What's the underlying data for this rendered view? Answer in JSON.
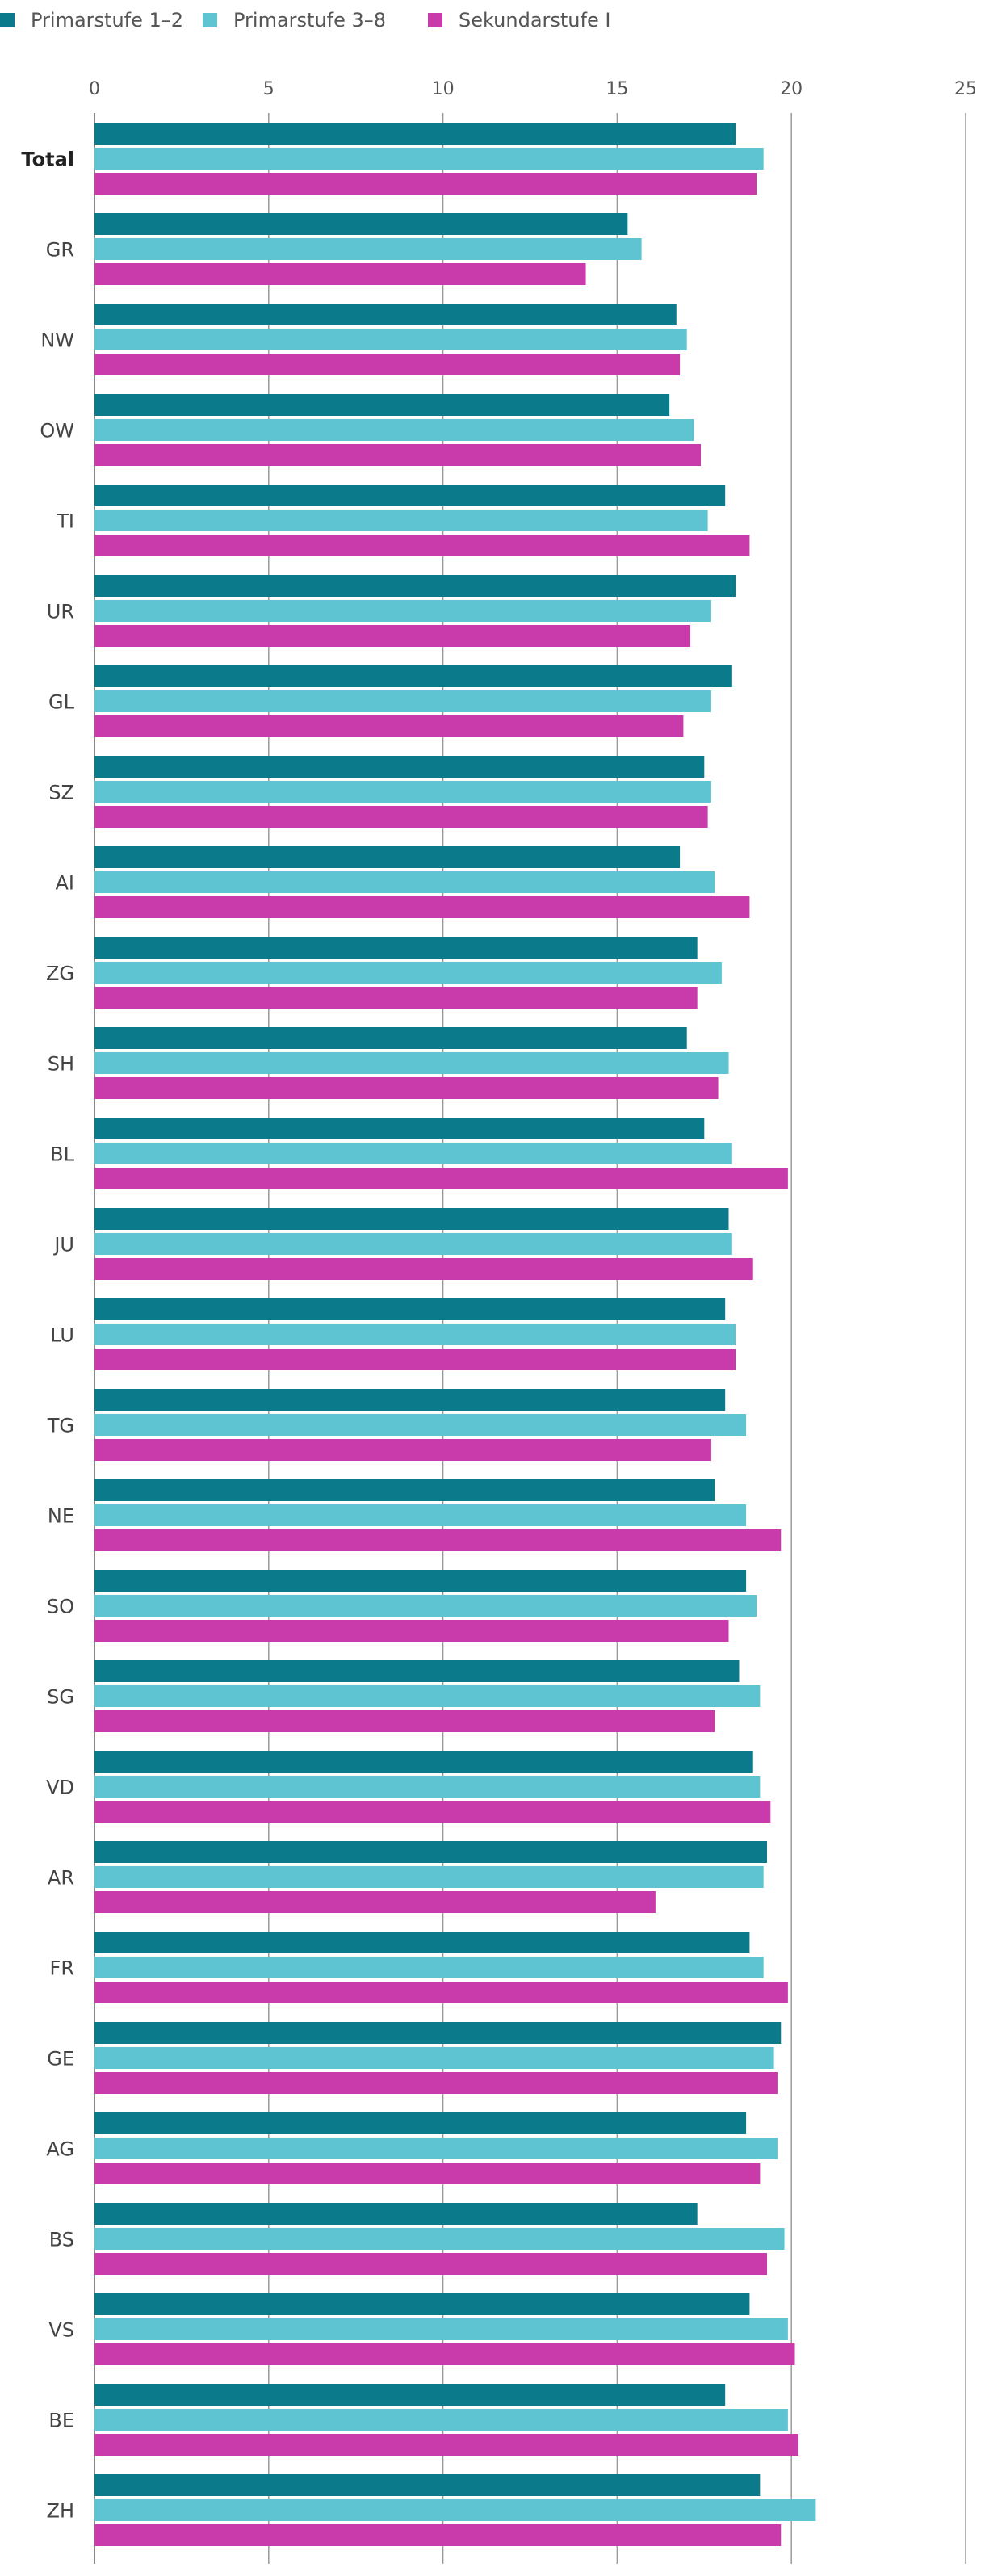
{
  "chart_data": {
    "type": "bar",
    "orientation": "horizontal",
    "title": "",
    "xlabel": "",
    "ylabel": "",
    "xlim": [
      0,
      25
    ],
    "xticks": [
      0,
      5,
      10,
      15,
      20,
      25
    ],
    "grid": true,
    "legend_position": "top-left",
    "categories": [
      "Total",
      "GR",
      "NW",
      "OW",
      "TI",
      "UR",
      "GL",
      "SZ",
      "AI",
      "ZG",
      "SH",
      "BL",
      "JU",
      "LU",
      "TG",
      "NE",
      "SO",
      "SG",
      "VD",
      "AR",
      "FR",
      "GE",
      "AG",
      "BS",
      "VS",
      "BE",
      "ZH"
    ],
    "series": [
      {
        "name": "Primarstufe 1–2",
        "color": "#0b7a8a",
        "values": [
          18.4,
          15.3,
          16.7,
          16.5,
          18.1,
          18.4,
          18.3,
          17.5,
          16.8,
          17.3,
          17.0,
          17.5,
          18.2,
          18.1,
          18.1,
          17.8,
          18.7,
          18.5,
          18.9,
          19.3,
          18.8,
          19.7,
          18.7,
          17.3,
          18.8,
          18.1,
          19.1
        ]
      },
      {
        "name": "Primarstufe 3–8",
        "color": "#5ec4d1",
        "values": [
          19.2,
          15.7,
          17.0,
          17.2,
          17.6,
          17.7,
          17.7,
          17.7,
          17.8,
          18.0,
          18.2,
          18.3,
          18.3,
          18.4,
          18.7,
          18.7,
          19.0,
          19.1,
          19.1,
          19.2,
          19.2,
          19.5,
          19.6,
          19.8,
          19.9,
          19.9,
          20.7
        ]
      },
      {
        "name": "Sekundarstufe I",
        "color": "#c93aaa",
        "values": [
          19.0,
          14.1,
          16.8,
          17.4,
          18.8,
          17.1,
          16.9,
          17.6,
          18.8,
          17.3,
          17.9,
          19.9,
          18.9,
          18.4,
          17.7,
          19.7,
          18.2,
          17.8,
          19.4,
          16.1,
          19.9,
          19.6,
          19.1,
          19.3,
          20.1,
          20.2,
          19.7
        ]
      }
    ]
  }
}
